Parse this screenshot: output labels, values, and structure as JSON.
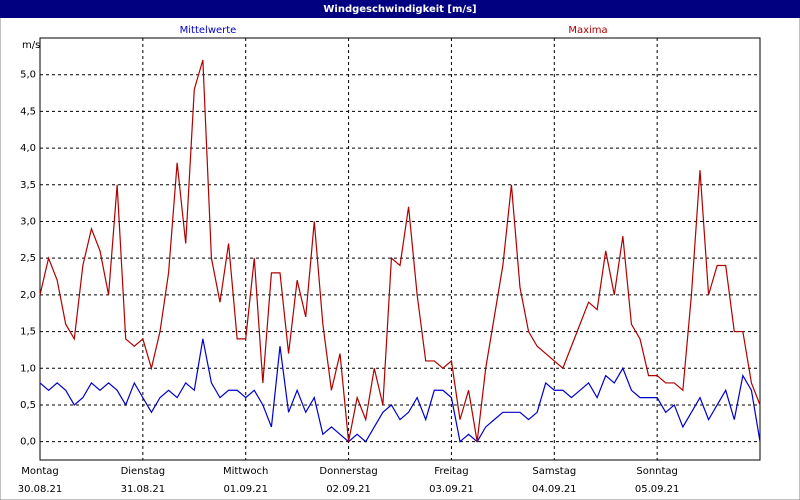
{
  "chart_data": {
    "type": "line",
    "title": "Windgeschwindigkeit [m/s]",
    "y_label": "m/s",
    "x": [
      0,
      2,
      4,
      6,
      8,
      10,
      12,
      14,
      16,
      18,
      20,
      22,
      24,
      26,
      28,
      30,
      32,
      34,
      36,
      38,
      40,
      42,
      44,
      46,
      48,
      50,
      52,
      54,
      56,
      58,
      60,
      62,
      64,
      66,
      68,
      70,
      72,
      74,
      76,
      78,
      80,
      82,
      84,
      86,
      88,
      90,
      92,
      94,
      96,
      98,
      100,
      102,
      104,
      106,
      108,
      110,
      112,
      114,
      116,
      118,
      120,
      122,
      124,
      126,
      128,
      130,
      132,
      134,
      136,
      138,
      140,
      142,
      144,
      146,
      148,
      150,
      152,
      154,
      156,
      158,
      160,
      162,
      164,
      166,
      168
    ],
    "xlim": [
      0,
      168
    ],
    "xticks": [
      {
        "value": 0,
        "label": "Montag"
      },
      {
        "value": 24,
        "label": "Dienstag"
      },
      {
        "value": 48,
        "label": "Mittwoch"
      },
      {
        "value": 72,
        "label": "Donnerstag"
      },
      {
        "value": 96,
        "label": "Freitag"
      },
      {
        "value": 120,
        "label": "Samstag"
      },
      {
        "value": 144,
        "label": "Sonntag"
      }
    ],
    "xtick_dates": [
      "30.08.21",
      "31.08.21",
      "01.09.21",
      "02.09.21",
      "03.09.21",
      "04.09.21",
      "05.09.21"
    ],
    "ylim": [
      -0.25,
      5.5
    ],
    "yticks": [
      {
        "value": 0,
        "label": "0,0"
      },
      {
        "value": 0.5,
        "label": "0,5"
      },
      {
        "value": 1,
        "label": "1,0"
      },
      {
        "value": 1.5,
        "label": "1,5"
      },
      {
        "value": 2,
        "label": "2,0"
      },
      {
        "value": 2.5,
        "label": "2,5"
      },
      {
        "value": 3,
        "label": "3,0"
      },
      {
        "value": 3.5,
        "label": "3,5"
      },
      {
        "value": 4,
        "label": "4,0"
      },
      {
        "value": 4.5,
        "label": "4,5"
      },
      {
        "value": 5,
        "label": "5,0"
      }
    ],
    "grid": true,
    "series": [
      {
        "name": "Mittelwerte",
        "color": "#0000cc",
        "values": [
          0.8,
          0.7,
          0.8,
          0.7,
          0.5,
          0.6,
          0.8,
          0.7,
          0.8,
          0.7,
          0.5,
          0.8,
          0.6,
          0.4,
          0.6,
          0.7,
          0.6,
          0.8,
          0.7,
          1.4,
          0.8,
          0.6,
          0.7,
          0.7,
          0.6,
          0.7,
          0.5,
          0.2,
          1.3,
          0.4,
          0.7,
          0.4,
          0.6,
          0.1,
          0.2,
          0.1,
          0.0,
          0.1,
          0.0,
          0.2,
          0.4,
          0.5,
          0.3,
          0.4,
          0.6,
          0.3,
          0.7,
          0.7,
          0.6,
          0.0,
          0.1,
          0.0,
          0.2,
          0.3,
          0.4,
          0.4,
          0.4,
          0.3,
          0.4,
          0.8,
          0.7,
          0.7,
          0.6,
          0.7,
          0.8,
          0.6,
          0.9,
          0.8,
          1.0,
          0.7,
          0.6,
          0.6,
          0.6,
          0.4,
          0.5,
          0.2,
          0.4,
          0.6,
          0.3,
          0.5,
          0.7,
          0.3,
          0.9,
          0.7,
          0.0
        ]
      },
      {
        "name": "Maxima",
        "color": "#b00000",
        "values": [
          2.0,
          2.5,
          2.2,
          1.6,
          1.4,
          2.4,
          2.9,
          2.6,
          2.0,
          3.5,
          1.4,
          1.3,
          1.4,
          1.0,
          1.5,
          2.3,
          3.8,
          2.7,
          4.8,
          5.2,
          2.5,
          1.9,
          2.7,
          1.4,
          1.4,
          2.5,
          0.8,
          2.3,
          2.3,
          1.2,
          2.2,
          1.7,
          3.0,
          1.6,
          0.7,
          1.2,
          0.0,
          0.6,
          0.3,
          1.0,
          0.5,
          2.5,
          2.4,
          3.2,
          2.0,
          1.1,
          1.1,
          1.0,
          1.1,
          0.3,
          0.7,
          0.0,
          1.0,
          1.7,
          2.4,
          3.5,
          2.1,
          1.5,
          1.3,
          1.2,
          1.1,
          1.0,
          1.3,
          1.6,
          1.9,
          1.8,
          2.6,
          2.0,
          2.8,
          1.6,
          1.4,
          0.9,
          0.9,
          0.8,
          0.8,
          0.7,
          2.0,
          3.7,
          2.0,
          2.4,
          2.4,
          1.5,
          1.5,
          0.8,
          0.5
        ]
      }
    ]
  }
}
